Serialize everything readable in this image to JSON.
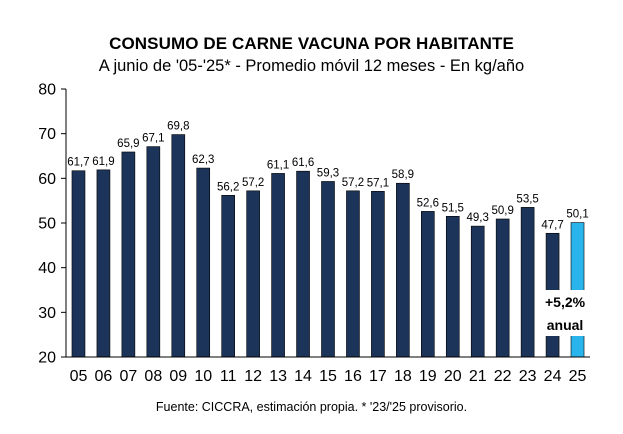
{
  "chart_data": {
    "type": "bar",
    "title": "CONSUMO DE CARNE VACUNA POR HABITANTE",
    "subtitle": "A junio de '05-'25* - Promedio móvil 12 meses -  En kg/año",
    "xlabel": "",
    "ylabel": "",
    "ylim": [
      20,
      80
    ],
    "yticks": [
      20,
      30,
      40,
      50,
      60,
      70,
      80
    ],
    "grid": false,
    "categories": [
      "05",
      "06",
      "07",
      "08",
      "09",
      "10",
      "11",
      "12",
      "13",
      "14",
      "15",
      "16",
      "17",
      "18",
      "19",
      "20",
      "21",
      "22",
      "23",
      "24",
      "25"
    ],
    "values": [
      61.7,
      61.9,
      65.9,
      67.1,
      69.8,
      62.3,
      56.2,
      57.2,
      61.1,
      61.6,
      59.3,
      57.2,
      57.1,
      58.9,
      52.6,
      51.5,
      49.3,
      50.9,
      53.5,
      47.7,
      50.1
    ],
    "value_labels": [
      "61,7",
      "61,9",
      "65,9",
      "67,1",
      "69,8",
      "62,3",
      "56,2",
      "57,2",
      "61,1",
      "61,6",
      "59,3",
      "57,2",
      "57,1",
      "58,9",
      "52,6",
      "51,5",
      "49,3",
      "50,9",
      "53,5",
      "47,7",
      "50,1"
    ],
    "colors": {
      "bar": "#1c3459",
      "highlight": "#29b4ec",
      "axis": "#000000"
    },
    "highlight_index": 20,
    "annotation": {
      "line1": "+5,2%",
      "line2": "anual"
    },
    "source": "Fuente: CICCRA, estimación propia. * '23/'25 provisorio."
  }
}
